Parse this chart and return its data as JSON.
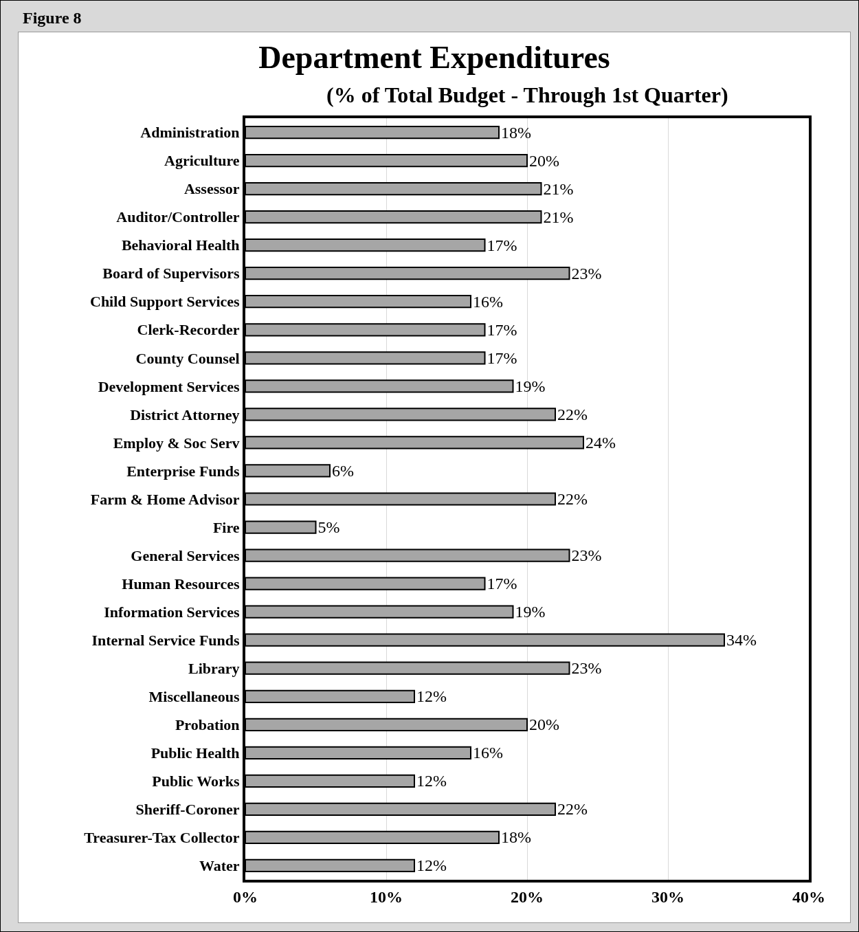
{
  "chart_data": {
    "type": "bar",
    "orientation": "horizontal",
    "title": "Department Expenditures",
    "subtitle": "(% of Total Budget - Through 1st Quarter)",
    "annotations": [
      "Figure 8"
    ],
    "categories": [
      "Administration",
      "Agriculture",
      "Assessor",
      "Auditor/Controller",
      "Behavioral Health",
      "Board of Supervisors",
      "Child Support Services",
      "Clerk-Recorder",
      "County Counsel",
      "Development Services",
      "District Attorney",
      "Employ & Soc Serv",
      "Enterprise Funds",
      "Farm & Home Advisor",
      "Fire",
      "General Services",
      "Human Resources",
      "Information Services",
      "Internal Service Funds",
      "Library",
      "Miscellaneous",
      "Probation",
      "Public Health",
      "Public Works",
      "Sheriff-Coroner",
      "Treasurer-Tax Collector",
      "Water"
    ],
    "values": [
      18,
      20,
      21,
      21,
      17,
      23,
      16,
      17,
      17,
      19,
      22,
      24,
      6,
      22,
      5,
      23,
      17,
      19,
      34,
      23,
      12,
      20,
      16,
      12,
      22,
      18,
      12
    ],
    "value_labels": [
      "18%",
      "20%",
      "21%",
      "21%",
      "17%",
      "23%",
      "16%",
      "17%",
      "17%",
      "19%",
      "22%",
      "24%",
      "6%",
      "22%",
      "5%",
      "23%",
      "17%",
      "19%",
      "34%",
      "23%",
      "12%",
      "20%",
      "16%",
      "12%",
      "22%",
      "18%",
      "12%"
    ],
    "color": "#a6a6a6",
    "xlim": [
      0,
      40
    ],
    "xticks": [
      {
        "value": 0,
        "label": "0%"
      },
      {
        "value": 10,
        "label": "10%"
      },
      {
        "value": 20,
        "label": "20%"
      },
      {
        "value": 30,
        "label": "30%"
      },
      {
        "value": 40,
        "label": "40%"
      }
    ],
    "grid": "x"
  }
}
